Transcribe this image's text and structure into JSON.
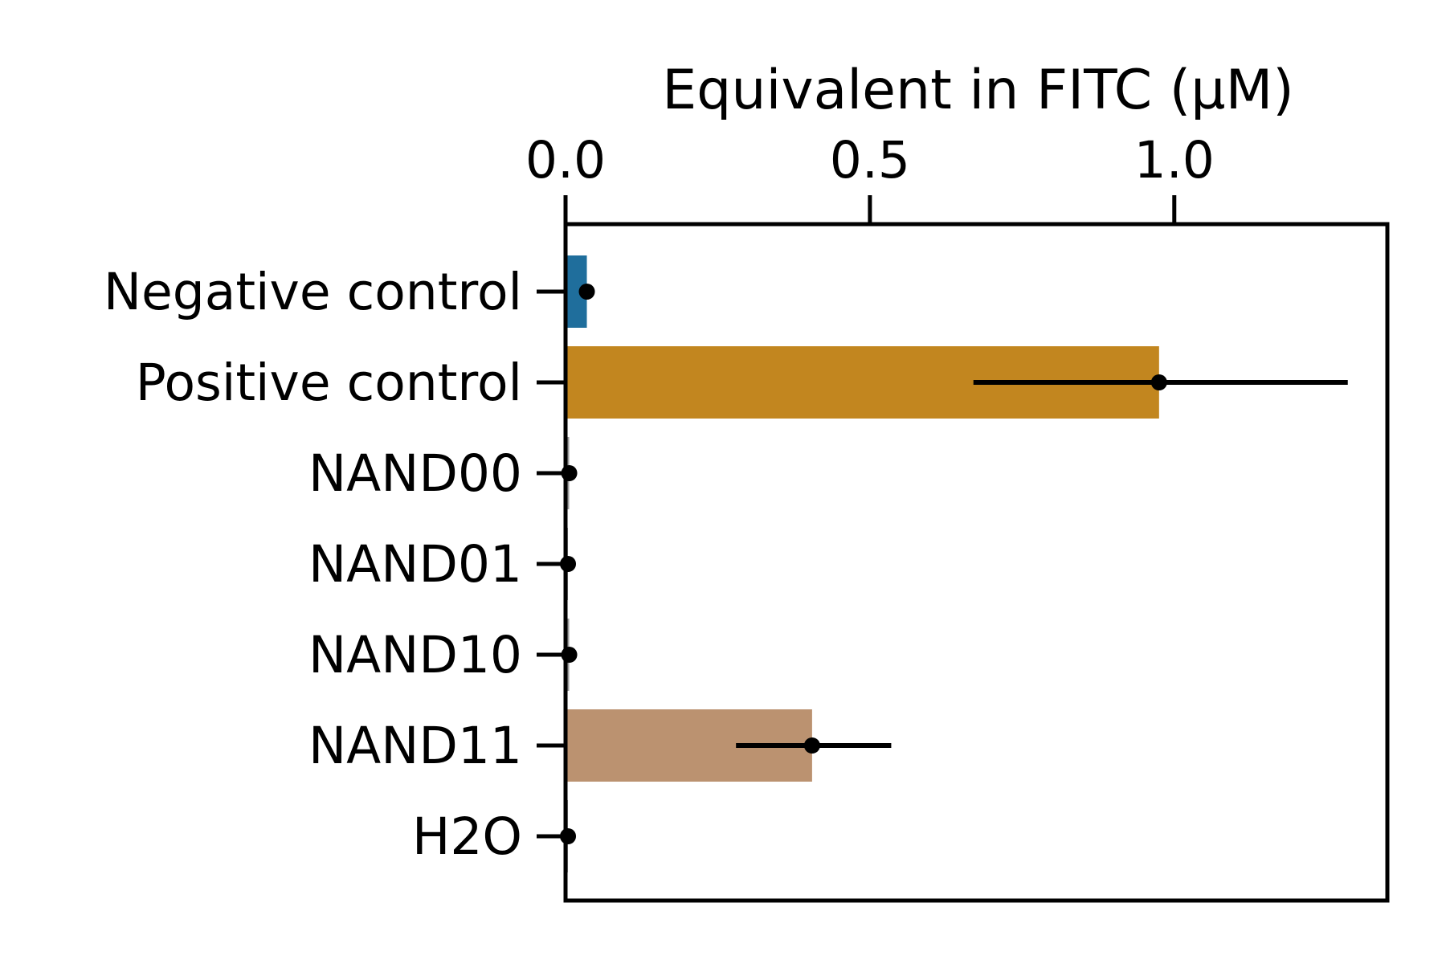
{
  "chart_data": {
    "type": "bar",
    "orientation": "horizontal",
    "xlabel": "Equivalent in FITC (µM)",
    "xlabel_position": "top",
    "ylabel": "",
    "title": "",
    "xlim": [
      0,
      1.35
    ],
    "xticks": [
      0.0,
      0.5,
      1.0
    ],
    "xtick_labels": [
      "0.0",
      "0.5",
      "1.0"
    ],
    "grid": false,
    "legend": "none",
    "categories": [
      "Negative control",
      "Positive control",
      "NAND00",
      "NAND01",
      "NAND10",
      "NAND11",
      "H2O"
    ],
    "values": [
      0.035,
      0.975,
      0.006,
      0.004,
      0.006,
      0.405,
      0.004
    ],
    "error_low": [
      0.035,
      0.67,
      0.006,
      0.004,
      0.006,
      0.28,
      0.004
    ],
    "error_high": [
      0.035,
      1.285,
      0.006,
      0.004,
      0.006,
      0.535,
      0.004
    ],
    "colors": [
      "#1f6e9c",
      "#c2861f",
      "#9c9c9c",
      "#9c9c9c",
      "#9c9c9c",
      "#bb9270",
      "#9c9c9c"
    ]
  }
}
